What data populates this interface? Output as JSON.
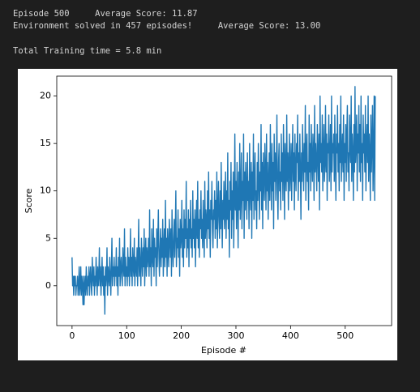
{
  "output_lines": [
    "Episode 500     Average Score: 11.87",
    "Environment solved in 457 episodes!     Average Score: 13.00",
    "Total Training time = 5.8 min"
  ],
  "chart_data": {
    "type": "line",
    "xlabel": "Episode #",
    "ylabel": "Score",
    "color": "#1f77b4",
    "xlim": [
      -28,
      585
    ],
    "xticks": [
      0,
      100,
      200,
      300,
      400,
      500
    ],
    "ylim": [
      -4.2,
      22.1
    ],
    "yticks": [
      0,
      5,
      10,
      15,
      20
    ],
    "values": [
      3,
      0,
      1,
      -1,
      1,
      0,
      1,
      -1,
      0,
      0,
      1,
      -1,
      0,
      2,
      -1,
      0,
      2,
      -1,
      1,
      0,
      -2,
      1,
      -2,
      0,
      1,
      -1,
      2,
      0,
      -1,
      1,
      0,
      2,
      -1,
      1,
      2,
      0,
      -1,
      3,
      1,
      0,
      2,
      -1,
      1,
      0,
      3,
      1,
      -1,
      2,
      0,
      1,
      4,
      0,
      2,
      -1,
      1,
      3,
      0,
      2,
      -1,
      1,
      -3,
      2,
      0,
      1,
      4,
      -1,
      2,
      1,
      0,
      3,
      1,
      -1,
      2,
      5,
      0,
      2,
      1,
      3,
      0,
      2,
      1,
      4,
      0,
      2,
      -1,
      3,
      1,
      5,
      0,
      2,
      3,
      1,
      0,
      4,
      2,
      1,
      6,
      0,
      3,
      1,
      2,
      0,
      4,
      1,
      3,
      0,
      2,
      6,
      1,
      3,
      0,
      4,
      2,
      1,
      5,
      0,
      3,
      2,
      1,
      4,
      0,
      3,
      7,
      1,
      4,
      2,
      0,
      5,
      3,
      1,
      4,
      2,
      6,
      0,
      3,
      5,
      1,
      4,
      2,
      3,
      5,
      1,
      8,
      2,
      4,
      0,
      6,
      3,
      2,
      7,
      1,
      5,
      3,
      4,
      0,
      6,
      2,
      5,
      8,
      3,
      1,
      4,
      6,
      2,
      5,
      3,
      7,
      1,
      4,
      6,
      2,
      9,
      3,
      5,
      1,
      6,
      4,
      2,
      7,
      5,
      3,
      6,
      1,
      8,
      4,
      2,
      5,
      7,
      3,
      6,
      10,
      2,
      5,
      4,
      8,
      3,
      6,
      1,
      7,
      4,
      5,
      9,
      3,
      6,
      2,
      8,
      4,
      7,
      5,
      11,
      3,
      6,
      4,
      8,
      2,
      7,
      5,
      9,
      4,
      6,
      3,
      10,
      5,
      7,
      4,
      8,
      2,
      6,
      9,
      5,
      11,
      4,
      7,
      3,
      8,
      6,
      10,
      5,
      7,
      4,
      9,
      6,
      3,
      11,
      5,
      8,
      7,
      4,
      10,
      6,
      12,
      5,
      8,
      3,
      9,
      7,
      11,
      6,
      4,
      8,
      7,
      10,
      5,
      9,
      6,
      12,
      4,
      8,
      11,
      7,
      5,
      10,
      6,
      13,
      8,
      4,
      9,
      7,
      11,
      6,
      8,
      12,
      5,
      10,
      7,
      14,
      6,
      9,
      3,
      11,
      8,
      13,
      5,
      10,
      7,
      12,
      4,
      9,
      16,
      8,
      11,
      6,
      13,
      9,
      4,
      12,
      8,
      15,
      7,
      10,
      14,
      6,
      11,
      9,
      16,
      5,
      12,
      8,
      13,
      10,
      7,
      14,
      9,
      11,
      6,
      15,
      10,
      8,
      13,
      5,
      12,
      9,
      16,
      7,
      11,
      14,
      8,
      10,
      6,
      13,
      9,
      15,
      11,
      7,
      12,
      10,
      17,
      8,
      13,
      6,
      14,
      11,
      9,
      15,
      12,
      8,
      16,
      10,
      13,
      7,
      11,
      14,
      9,
      17,
      12,
      8,
      15,
      10,
      13,
      6,
      16,
      11,
      14,
      9,
      12,
      18,
      10,
      7,
      13,
      15,
      10,
      12,
      8,
      16,
      11,
      14,
      9,
      17,
      13,
      7,
      15,
      12,
      10,
      18,
      11,
      14,
      8,
      13,
      16,
      10,
      12,
      15,
      9,
      13,
      17,
      11,
      14,
      8,
      16,
      12,
      10,
      15,
      13,
      18,
      9,
      14,
      11,
      16,
      12,
      7,
      14,
      11,
      17,
      13,
      10,
      15,
      12,
      19,
      9,
      14,
      16,
      11,
      13,
      8,
      18,
      12,
      15,
      10,
      17,
      13,
      11,
      16,
      14,
      9,
      19,
      12,
      15,
      13,
      10,
      17,
      14,
      11,
      16,
      8,
      20,
      13,
      15,
      12,
      18,
      10,
      14,
      17,
      11,
      13,
      19,
      12,
      16,
      9,
      15,
      14,
      18,
      11,
      13,
      17,
      10,
      20,
      12,
      15,
      14,
      16,
      11,
      18,
      13,
      9,
      16,
      14,
      19,
      12,
      15,
      10,
      17,
      13,
      20,
      11,
      14,
      16,
      12,
      18,
      9,
      15,
      13,
      17,
      11,
      16,
      19,
      12,
      14,
      10,
      18,
      15,
      13,
      20,
      11,
      16,
      14,
      9,
      17,
      12,
      21,
      13,
      15,
      18,
      10,
      16,
      14,
      19,
      12,
      17,
      11,
      20,
      13,
      15,
      9,
      18,
      14,
      16,
      12,
      19,
      10,
      15,
      17,
      13,
      20,
      11,
      16,
      14,
      9,
      18,
      12,
      15,
      19,
      10,
      14,
      20,
      9,
      20
    ]
  }
}
